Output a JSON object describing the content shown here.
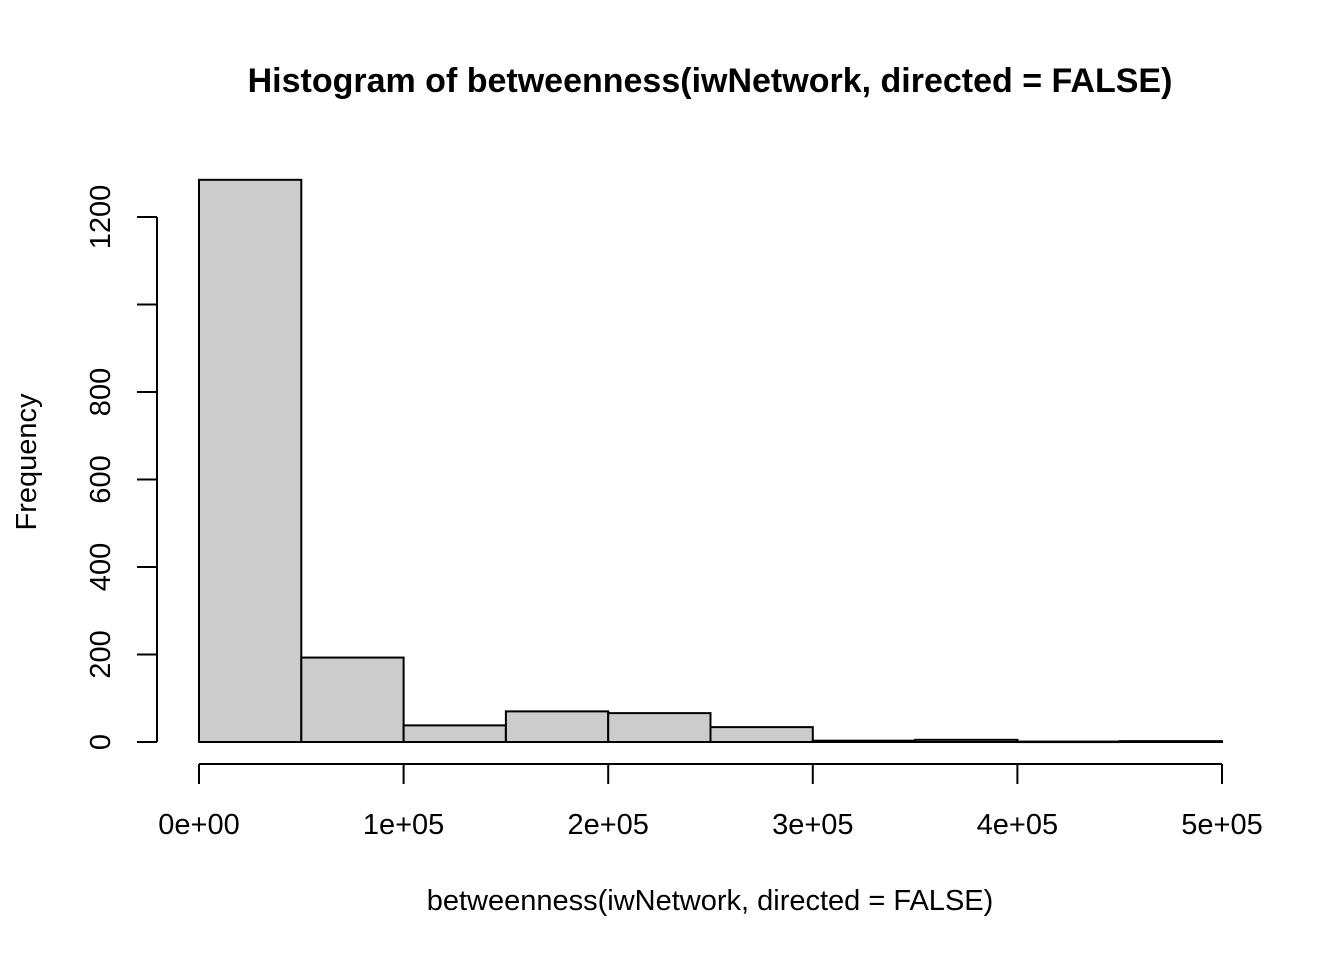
{
  "chart_data": {
    "type": "bar",
    "title": "Histogram of betweenness(iwNetwork, directed = FALSE)",
    "xlabel": "betweenness(iwNetwork, directed = FALSE)",
    "ylabel": "Frequency",
    "bin_edges": [
      0,
      50000,
      100000,
      150000,
      200000,
      250000,
      300000,
      350000,
      400000,
      450000,
      500000
    ],
    "values": [
      1285,
      193,
      38,
      70,
      66,
      34,
      3,
      5,
      1,
      2
    ],
    "xlim": [
      0,
      500000
    ],
    "ylim": [
      0,
      1285
    ],
    "x_ticks": [
      0,
      100000,
      200000,
      300000,
      400000,
      500000
    ],
    "x_tick_labels": [
      "0e+00",
      "1e+05",
      "2e+05",
      "3e+05",
      "4e+05",
      "5e+05"
    ],
    "y_ticks": [
      0,
      200,
      400,
      600,
      800,
      1000,
      1200
    ],
    "y_tick_labels": [
      "0",
      "200",
      "400",
      "600",
      "800",
      "",
      "1200"
    ],
    "bar_fill": "#cccccc",
    "grid": false,
    "legend": "none"
  }
}
